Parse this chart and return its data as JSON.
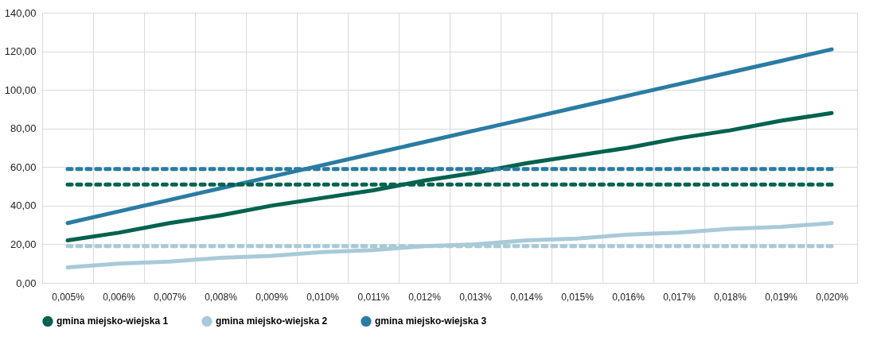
{
  "chart_data": {
    "type": "line",
    "categories": [
      "0,005%",
      "0,006%",
      "0,007%",
      "0,008%",
      "0,009%",
      "0,010%",
      "0,011%",
      "0,012%",
      "0,013%",
      "0,014%",
      "0,015%",
      "0,016%",
      "0,017%",
      "0,018%",
      "0,019%",
      "0,020%"
    ],
    "series": [
      {
        "name": "gmina miejsko-wiejska 1",
        "color": "#00624f",
        "line_style": "solid",
        "values": [
          22,
          26,
          31,
          35,
          40,
          44,
          48,
          53,
          57,
          62,
          66,
          70,
          75,
          79,
          84,
          88
        ]
      },
      {
        "name": "gmina miejsko-wiejska 2",
        "color": "#a8cad8",
        "line_style": "solid",
        "values": [
          8,
          10,
          11,
          13,
          14,
          16,
          17,
          19,
          20,
          22,
          23,
          25,
          26,
          28,
          29,
          31
        ]
      },
      {
        "name": "gmina miejsko-wiejska 3",
        "color": "#2a7ca3",
        "line_style": "solid",
        "values": [
          31,
          37,
          43,
          49,
          55,
          61,
          67,
          73,
          79,
          85,
          91,
          97,
          103,
          109,
          115,
          121
        ]
      },
      {
        "color": "#00624f",
        "line_style": "dotted",
        "values": [
          51,
          51,
          51,
          51,
          51,
          51,
          51,
          51,
          51,
          51,
          51,
          51,
          51,
          51,
          51,
          51
        ]
      },
      {
        "color": "#a8cad8",
        "line_style": "dotted",
        "values": [
          19,
          19,
          19,
          19,
          19,
          19,
          19,
          19,
          19,
          19,
          19,
          19,
          19,
          19,
          19,
          19
        ]
      },
      {
        "color": "#2a7ca3",
        "line_style": "dotted",
        "values": [
          59,
          59,
          59,
          59,
          59,
          59,
          59,
          59,
          59,
          59,
          59,
          59,
          59,
          59,
          59,
          59
        ]
      }
    ],
    "ylim": [
      0,
      140
    ],
    "yticks": [
      {
        "value": 0,
        "label": "0,00"
      },
      {
        "value": 20,
        "label": "20,00"
      },
      {
        "value": 40,
        "label": "40,00"
      },
      {
        "value": 60,
        "label": "60,00"
      },
      {
        "value": 80,
        "label": "80,00"
      },
      {
        "value": 100,
        "label": "100,00"
      },
      {
        "value": 120,
        "label": "120,00"
      },
      {
        "value": 140,
        "label": "140,00"
      }
    ],
    "grid": true,
    "legend": "bottom",
    "marker": "none"
  }
}
